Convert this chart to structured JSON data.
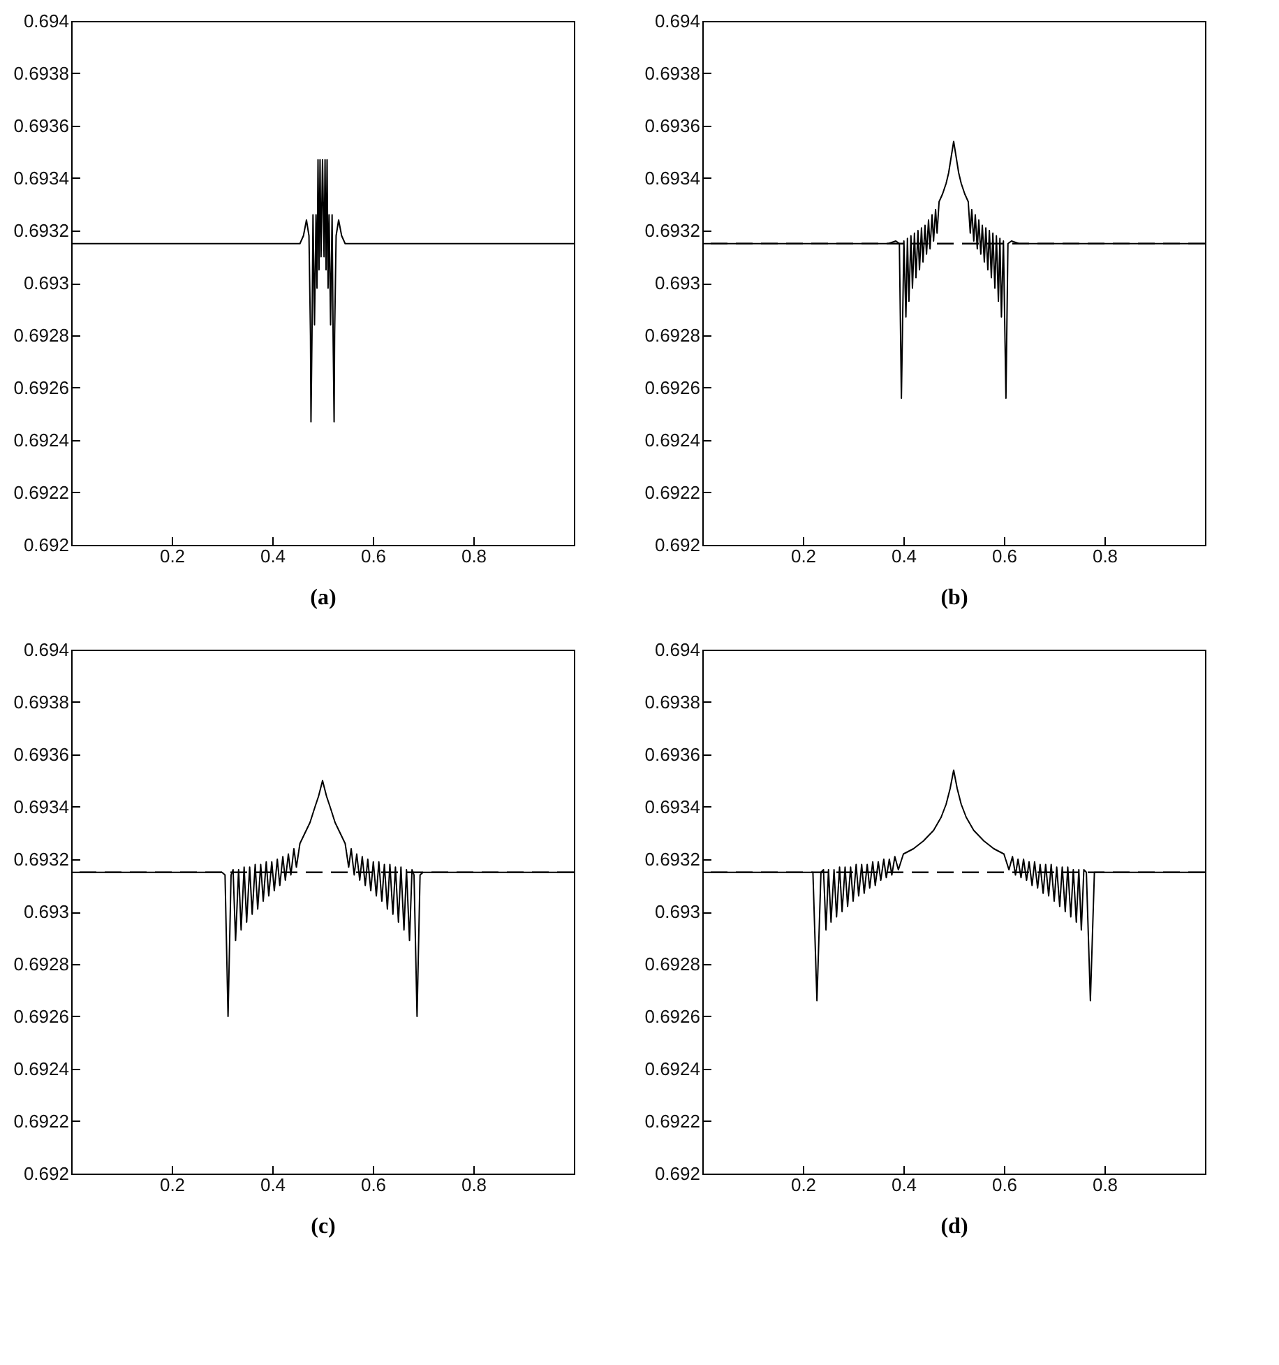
{
  "chart_data": [
    {
      "type": "line",
      "xlabel": "(a)",
      "xlim": [
        0,
        1
      ],
      "xticks": [
        0.2,
        0.4,
        0.6,
        0.8
      ],
      "ylim": [
        0.692,
        0.694
      ],
      "yticks": [
        0.692,
        0.6922,
        0.6924,
        0.6926,
        0.6928,
        0.693,
        0.6932,
        0.6934,
        0.6936,
        0.6938,
        0.694
      ],
      "grid": false,
      "legend": false,
      "series": [
        {
          "color": "#000000",
          "x": [
            0,
            0.455,
            0.462,
            0.468,
            0.473,
            0.476,
            0.477,
            0.479,
            0.481,
            0.484,
            0.487,
            0.489,
            0.491,
            0.493,
            0.495,
            0.497,
            0.5,
            0.503,
            0.505,
            0.507,
            0.509,
            0.511,
            0.513,
            0.516,
            0.519,
            0.521,
            0.523,
            0.524,
            0.527,
            0.532,
            0.538,
            0.545,
            1
          ],
          "values": [
            0.69315,
            0.69315,
            0.69318,
            0.69324,
            0.69318,
            0.6928,
            0.69247,
            0.6928,
            0.69326,
            0.69284,
            0.69326,
            0.69298,
            0.69347,
            0.69305,
            0.69347,
            0.6931,
            0.69347,
            0.6931,
            0.69347,
            0.69305,
            0.69347,
            0.69298,
            0.69326,
            0.69284,
            0.69326,
            0.6928,
            0.69247,
            0.6928,
            0.69318,
            0.69324,
            0.69318,
            0.69315,
            0.69315
          ]
        }
      ]
    },
    {
      "type": "line",
      "xlabel": "(b)",
      "xlim": [
        0,
        1
      ],
      "xticks": [
        0.2,
        0.4,
        0.6,
        0.8
      ],
      "ylim": [
        0.692,
        0.694
      ],
      "yticks": [
        0.692,
        0.6922,
        0.6924,
        0.6926,
        0.6928,
        0.693,
        0.6932,
        0.6934,
        0.6936,
        0.6938,
        0.694
      ],
      "grid": false,
      "legend": false,
      "ref_lines": [
        {
          "axis": "y",
          "value": 0.69315,
          "line_style": "dashed"
        }
      ],
      "series": [
        {
          "color": "#000000",
          "x": [
            0,
            0.37,
            0.385,
            0.392,
            0.396,
            0.401,
            0.405,
            0.408,
            0.411,
            0.415,
            0.418,
            0.422,
            0.425,
            0.429,
            0.432,
            0.436,
            0.439,
            0.443,
            0.446,
            0.45,
            0.453,
            0.457,
            0.46,
            0.464,
            0.467,
            0.471,
            0.478,
            0.485,
            0.49,
            0.495,
            0.5,
            0.505,
            0.51,
            0.515,
            0.522,
            0.529,
            0.533,
            0.536,
            0.54,
            0.543,
            0.547,
            0.55,
            0.554,
            0.557,
            0.561,
            0.564,
            0.568,
            0.571,
            0.575,
            0.578,
            0.582,
            0.585,
            0.589,
            0.592,
            0.595,
            0.599,
            0.604,
            0.608,
            0.615,
            0.63,
            1
          ],
          "values": [
            0.69315,
            0.69315,
            0.69316,
            0.69315,
            0.69256,
            0.69316,
            0.69287,
            0.69317,
            0.69293,
            0.69318,
            0.69298,
            0.69319,
            0.69302,
            0.6932,
            0.69305,
            0.69321,
            0.69308,
            0.69322,
            0.69311,
            0.69324,
            0.69313,
            0.69326,
            0.69316,
            0.69328,
            0.69319,
            0.69331,
            0.69334,
            0.69338,
            0.69342,
            0.69348,
            0.69354,
            0.69348,
            0.69342,
            0.69338,
            0.69334,
            0.69331,
            0.69319,
            0.69328,
            0.69316,
            0.69326,
            0.69313,
            0.69324,
            0.69311,
            0.69322,
            0.69308,
            0.69321,
            0.69305,
            0.6932,
            0.69302,
            0.69319,
            0.69298,
            0.69318,
            0.69293,
            0.69317,
            0.69287,
            0.69316,
            0.69256,
            0.69315,
            0.69316,
            0.69315,
            0.69315
          ]
        }
      ]
    },
    {
      "type": "line",
      "xlabel": "(c)",
      "xlim": [
        0,
        1
      ],
      "xticks": [
        0.2,
        0.4,
        0.6,
        0.8
      ],
      "ylim": [
        0.692,
        0.694
      ],
      "yticks": [
        0.692,
        0.6922,
        0.6924,
        0.6926,
        0.6928,
        0.693,
        0.6932,
        0.6934,
        0.6936,
        0.6938,
        0.694
      ],
      "grid": false,
      "legend": false,
      "ref_lines": [
        {
          "axis": "y",
          "value": 0.69315,
          "line_style": "dashed"
        }
      ],
      "series": [
        {
          "color": "#000000",
          "x": [
            0,
            0.3,
            0.306,
            0.312,
            0.318,
            0.322,
            0.327,
            0.333,
            0.338,
            0.344,
            0.349,
            0.355,
            0.36,
            0.366,
            0.371,
            0.377,
            0.382,
            0.388,
            0.393,
            0.399,
            0.404,
            0.41,
            0.415,
            0.421,
            0.426,
            0.432,
            0.437,
            0.443,
            0.448,
            0.455,
            0.465,
            0.475,
            0.485,
            0.492,
            0.5,
            0.508,
            0.515,
            0.525,
            0.535,
            0.545,
            0.552,
            0.557,
            0.563,
            0.568,
            0.574,
            0.579,
            0.585,
            0.59,
            0.596,
            0.601,
            0.607,
            0.612,
            0.618,
            0.623,
            0.629,
            0.634,
            0.64,
            0.645,
            0.651,
            0.656,
            0.662,
            0.667,
            0.673,
            0.678,
            0.682,
            0.688,
            0.694,
            0.7,
            1
          ],
          "values": [
            0.69315,
            0.69315,
            0.69314,
            0.6926,
            0.69314,
            0.69316,
            0.69289,
            0.69316,
            0.69293,
            0.69317,
            0.69296,
            0.69317,
            0.69299,
            0.69318,
            0.69301,
            0.69318,
            0.69304,
            0.69319,
            0.69306,
            0.69319,
            0.69308,
            0.6932,
            0.6931,
            0.69321,
            0.69312,
            0.69322,
            0.69314,
            0.69324,
            0.69317,
            0.69326,
            0.6933,
            0.69334,
            0.6934,
            0.69344,
            0.6935,
            0.69344,
            0.6934,
            0.69334,
            0.6933,
            0.69326,
            0.69317,
            0.69324,
            0.69314,
            0.69322,
            0.69312,
            0.69321,
            0.6931,
            0.6932,
            0.69308,
            0.69319,
            0.69306,
            0.69319,
            0.69304,
            0.69318,
            0.69301,
            0.69318,
            0.69299,
            0.69317,
            0.69296,
            0.69317,
            0.69293,
            0.69316,
            0.69289,
            0.69316,
            0.69314,
            0.6926,
            0.69314,
            0.69315,
            0.69315
          ]
        }
      ]
    },
    {
      "type": "line",
      "xlabel": "(d)",
      "xlim": [
        0,
        1
      ],
      "xticks": [
        0.2,
        0.4,
        0.6,
        0.8
      ],
      "ylim": [
        0.692,
        0.694
      ],
      "yticks": [
        0.692,
        0.6922,
        0.6924,
        0.6926,
        0.6928,
        0.693,
        0.6932,
        0.6934,
        0.6936,
        0.6938,
        0.694
      ],
      "grid": false,
      "legend": false,
      "ref_lines": [
        {
          "axis": "y",
          "value": 0.69315,
          "line_style": "dashed"
        }
      ],
      "series": [
        {
          "color": "#000000",
          "x": [
            0,
            0.22,
            0.228,
            0.236,
            0.241,
            0.246,
            0.251,
            0.256,
            0.262,
            0.267,
            0.273,
            0.278,
            0.284,
            0.289,
            0.295,
            0.3,
            0.306,
            0.311,
            0.317,
            0.322,
            0.328,
            0.333,
            0.339,
            0.344,
            0.35,
            0.355,
            0.361,
            0.366,
            0.372,
            0.377,
            0.383,
            0.39,
            0.4,
            0.42,
            0.44,
            0.46,
            0.475,
            0.485,
            0.493,
            0.5,
            0.507,
            0.515,
            0.525,
            0.54,
            0.56,
            0.58,
            0.6,
            0.61,
            0.617,
            0.623,
            0.628,
            0.634,
            0.639,
            0.645,
            0.65,
            0.656,
            0.661,
            0.667,
            0.672,
            0.678,
            0.683,
            0.689,
            0.694,
            0.7,
            0.705,
            0.711,
            0.716,
            0.722,
            0.727,
            0.733,
            0.738,
            0.744,
            0.749,
            0.754,
            0.759,
            0.764,
            0.772,
            0.78,
            1
          ],
          "values": [
            0.69315,
            0.69315,
            0.69266,
            0.69315,
            0.69316,
            0.69293,
            0.69316,
            0.69296,
            0.69316,
            0.69298,
            0.69317,
            0.693,
            0.69317,
            0.69302,
            0.69317,
            0.69304,
            0.69318,
            0.69306,
            0.69318,
            0.69307,
            0.69318,
            0.69309,
            0.69319,
            0.6931,
            0.69319,
            0.69312,
            0.6932,
            0.69313,
            0.6932,
            0.69314,
            0.69321,
            0.69316,
            0.69322,
            0.69324,
            0.69327,
            0.69331,
            0.69336,
            0.69341,
            0.69347,
            0.69354,
            0.69347,
            0.69341,
            0.69336,
            0.69331,
            0.69327,
            0.69324,
            0.69322,
            0.69316,
            0.69321,
            0.69314,
            0.6932,
            0.69313,
            0.6932,
            0.69312,
            0.69319,
            0.6931,
            0.69319,
            0.69309,
            0.69318,
            0.69307,
            0.69318,
            0.69306,
            0.69318,
            0.69304,
            0.69317,
            0.69302,
            0.69317,
            0.693,
            0.69317,
            0.69298,
            0.69316,
            0.69296,
            0.69316,
            0.69293,
            0.69316,
            0.69315,
            0.69266,
            0.69315,
            0.69315
          ]
        }
      ]
    }
  ]
}
